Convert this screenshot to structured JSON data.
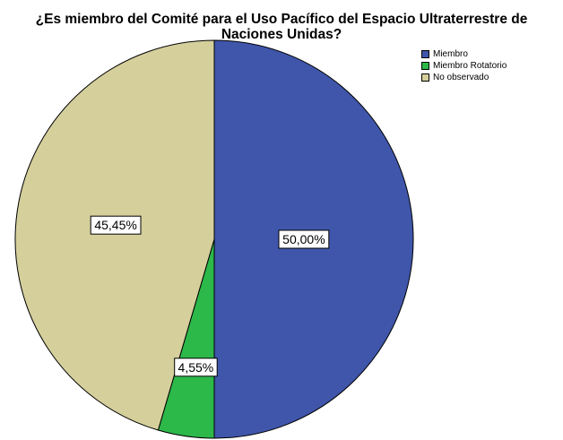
{
  "chart_data": {
    "type": "pie",
    "title_line1": "¿Es miembro del Comité para el Uso Pacífico del Espacio Ultraterrestre de",
    "title_line2": "Naciones Unidas?",
    "slices": [
      {
        "label": "Miembro",
        "value": 50.0,
        "display": "50,00%",
        "color": "#3f56aa"
      },
      {
        "label": "Miembro Rotatorio",
        "value": 4.55,
        "display": "4,55%",
        "color": "#2db84a"
      },
      {
        "label": "No observado",
        "value": 45.45,
        "display": "45,45%",
        "color": "#d5cf9c"
      }
    ],
    "legend_position": "top-right"
  }
}
